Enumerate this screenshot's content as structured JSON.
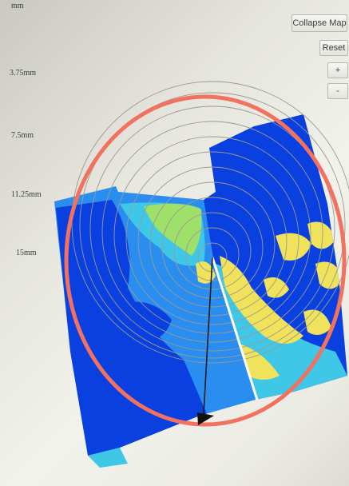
{
  "depth_scale": {
    "labels": [
      "mm",
      "3.75mm",
      "7.5mm",
      "11.25mm",
      "15mm"
    ]
  },
  "controls": {
    "collapse_label": "Collapse Map",
    "reset_label": "Reset",
    "zoom_in_label": "+",
    "zoom_out_label": "-"
  },
  "map": {
    "ring_count": 12,
    "colors": {
      "outer_ring": "#f2715f",
      "grid_ring": "#9a9a93",
      "deep_blue": "#0a3fe0",
      "mid_blue": "#2a8ef0",
      "cyan": "#3fc7e8",
      "green": "#9fe06a",
      "yellow": "#f0e25a",
      "scan_line": "#ffffff",
      "marker": "#111111"
    }
  }
}
